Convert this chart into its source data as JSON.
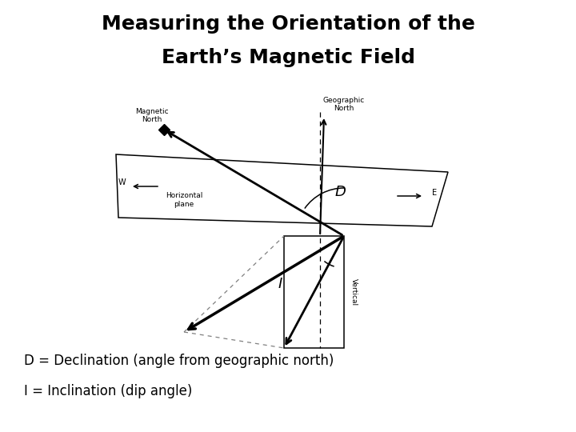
{
  "title_line1": "Measuring the Orientation of the",
  "title_line2": "Earth’s Magnetic Field",
  "title_fontsize": 18,
  "bg_color": "#ffffff",
  "text_color": "#000000",
  "label_mag_north": "Magnetic\nNorth",
  "label_geo_north": "Geographic\nNorth",
  "label_W": "W",
  "label_E": "E",
  "label_horiz": "Horizontal\nplane",
  "label_vertical": "Vertical",
  "annotation_D": "D",
  "annotation_I": "I",
  "legend_D": "D = Declination (angle from geographic north)",
  "legend_I": "I = Inclination (dip angle)"
}
